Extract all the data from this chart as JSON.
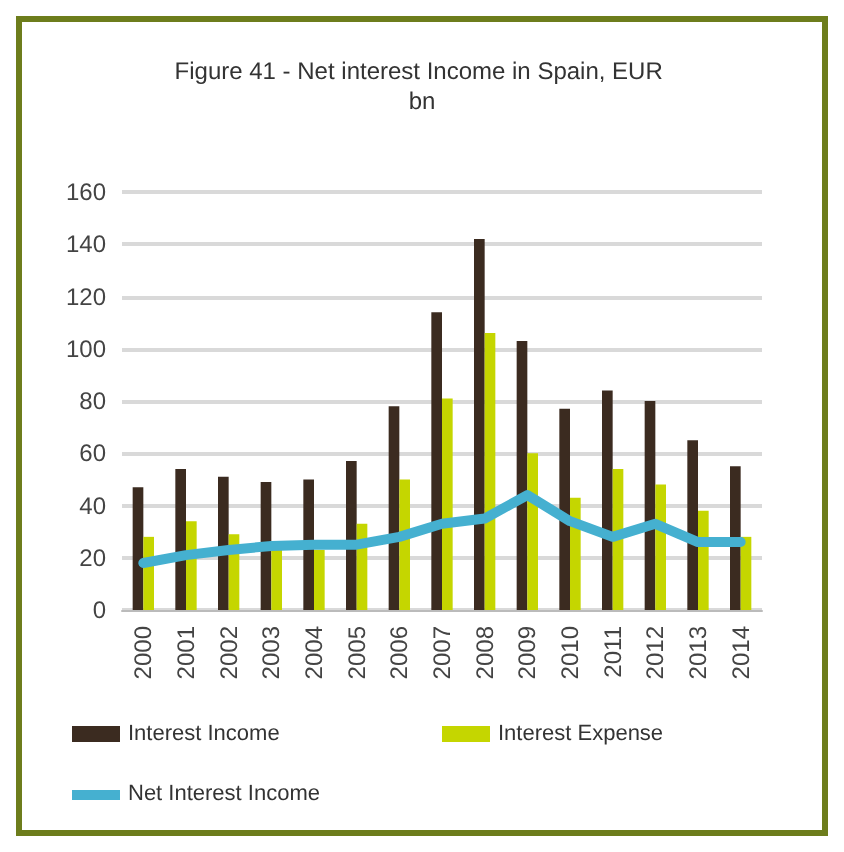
{
  "chart_data": {
    "type": "bar",
    "title": "Figure 41 - Net interest Income in Spain, EUR bn",
    "categories": [
      "2000",
      "2001",
      "2002",
      "2003",
      "2004",
      "2005",
      "2006",
      "2007",
      "2008",
      "2009",
      "2010",
      "2011",
      "2012",
      "2013",
      "2014"
    ],
    "series": [
      {
        "name": "Interest Income",
        "color": "#3b2b20",
        "values": [
          47,
          54,
          51,
          49,
          50,
          57,
          78,
          114,
          142,
          103,
          77,
          84,
          80,
          65,
          55
        ]
      },
      {
        "name": "Interest Expense",
        "color": "#c5d600",
        "values": [
          28,
          34,
          29,
          23,
          23,
          33,
          50,
          81,
          106,
          60,
          43,
          54,
          48,
          38,
          28
        ]
      },
      {
        "name": "Net Interest Income",
        "type": "line",
        "color": "#45b0d0",
        "values": [
          18,
          21,
          23,
          24.5,
          25,
          25,
          28,
          33,
          35,
          44,
          34,
          28,
          33,
          26,
          26
        ]
      }
    ],
    "ylim": [
      0,
      160
    ],
    "yticks": [
      0,
      20,
      40,
      60,
      80,
      100,
      120,
      140,
      160
    ],
    "grid": "y",
    "legend": "bottom",
    "marker": "none",
    "line_style": "solid"
  }
}
